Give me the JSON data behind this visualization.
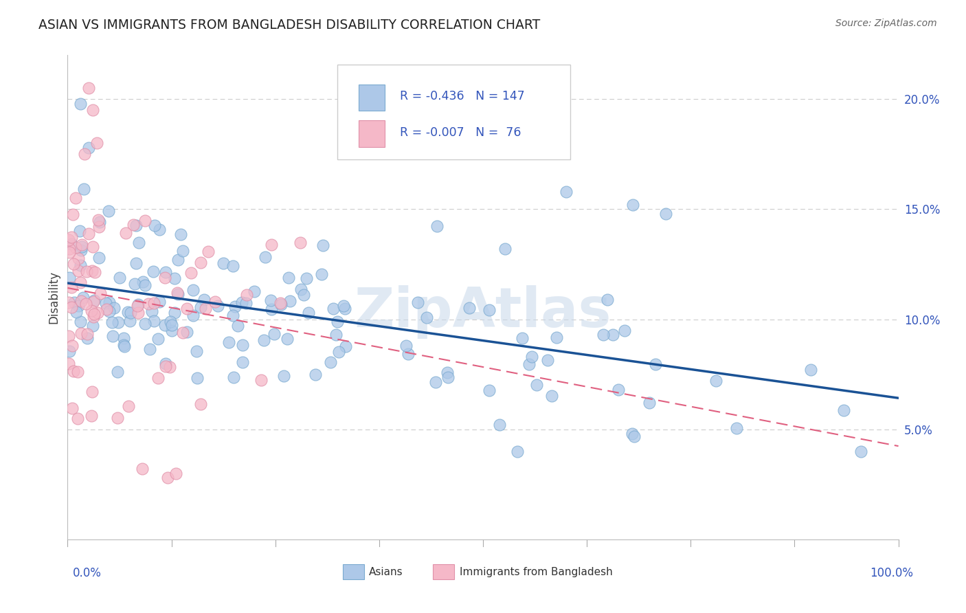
{
  "title": "ASIAN VS IMMIGRANTS FROM BANGLADESH DISABILITY CORRELATION CHART",
  "source": "Source: ZipAtlas.com",
  "ylabel": "Disability",
  "legend_blue_label": "Asians",
  "legend_pink_label": "Immigrants from Bangladesh",
  "r_blue": -0.436,
  "n_blue": 147,
  "r_pink": -0.007,
  "n_pink": 76,
  "ylim": [
    0.0,
    0.22
  ],
  "xlim": [
    0.0,
    1.0
  ],
  "yticks": [
    0.05,
    0.1,
    0.15,
    0.2
  ],
  "ytick_labels": [
    "5.0%",
    "10.0%",
    "15.0%",
    "20.0%"
  ],
  "watermark": "ZipAtlas",
  "blue_face_color": "#adc8e8",
  "blue_edge_color": "#7aaad0",
  "blue_line_color": "#1a5295",
  "pink_face_color": "#f5b8c8",
  "pink_edge_color": "#e090a8",
  "pink_line_color": "#e06080",
  "background_color": "#ffffff",
  "grid_color": "#cccccc",
  "text_color_blue": "#3355bb",
  "text_color_dark": "#222222",
  "legend_text_color": "#3355bb"
}
